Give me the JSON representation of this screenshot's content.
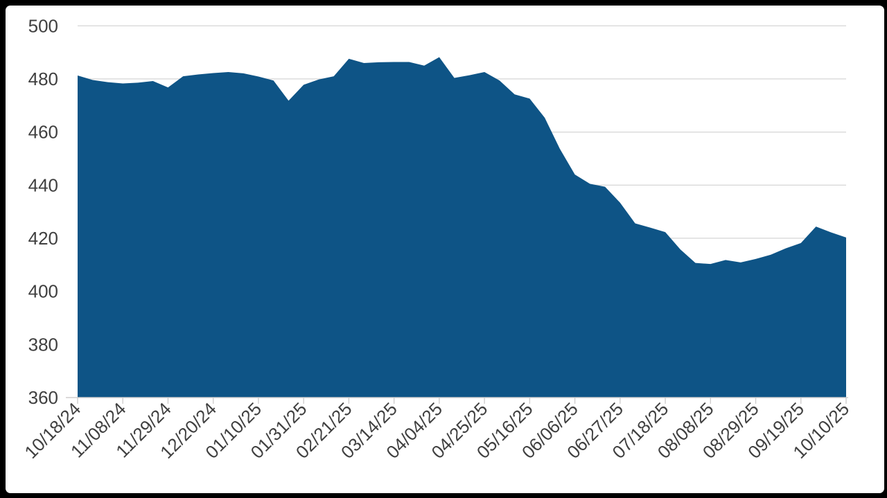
{
  "chart_data": {
    "type": "area",
    "title": "",
    "legend": "none",
    "grid": "horizontal",
    "x": [
      "10/18/24",
      "10/25/24",
      "11/01/24",
      "11/08/24",
      "11/15/24",
      "11/22/24",
      "11/29/24",
      "12/06/24",
      "12/13/24",
      "12/20/24",
      "12/27/24",
      "01/03/25",
      "01/10/25",
      "01/17/25",
      "01/24/25",
      "01/31/25",
      "02/07/25",
      "02/14/25",
      "02/21/25",
      "02/28/25",
      "03/07/25",
      "03/14/25",
      "03/21/25",
      "03/28/25",
      "04/04/25",
      "04/11/25",
      "04/18/25",
      "04/25/25",
      "05/02/25",
      "05/09/25",
      "05/16/25",
      "05/23/25",
      "05/30/25",
      "06/06/25",
      "06/13/25",
      "06/20/25",
      "06/27/25",
      "07/04/25",
      "07/11/25",
      "07/18/25",
      "07/25/25",
      "08/01/25",
      "08/08/25",
      "08/15/25",
      "08/22/25",
      "08/29/25",
      "09/05/25",
      "09/12/25",
      "09/19/25",
      "09/26/25",
      "10/03/25",
      "10/10/25"
    ],
    "values": [
      481.3,
      479.6,
      478.8,
      478.3,
      478.6,
      479.2,
      476.8,
      481.0,
      481.7,
      482.2,
      482.6,
      482.1,
      480.9,
      479.4,
      471.8,
      477.8,
      479.8,
      481.0,
      487.6,
      486.0,
      486.3,
      486.4,
      486.4,
      485.0,
      488.2,
      480.4,
      481.4,
      482.6,
      479.4,
      474.2,
      472.6,
      465.4,
      453.7,
      444.0,
      440.5,
      439.4,
      433.4,
      425.6,
      424.0,
      422.3,
      415.8,
      410.7,
      410.3,
      411.8,
      410.9,
      412.2,
      413.8,
      416.2,
      418.2,
      424.4,
      422.2,
      420.3
    ],
    "x_tick_labels": [
      "10/18/24",
      "11/08/24",
      "11/29/24",
      "12/20/24",
      "01/10/25",
      "01/31/25",
      "02/21/25",
      "03/14/25",
      "04/04/25",
      "04/25/25",
      "05/16/25",
      "06/06/25",
      "06/27/25",
      "07/18/25",
      "08/08/25",
      "08/29/25",
      "09/19/25",
      "10/10/25"
    ],
    "x_label_every": 3,
    "x_label_rotation_deg": -45,
    "yticks": [
      360,
      380,
      400,
      420,
      440,
      460,
      480,
      500
    ],
    "ylim": [
      360,
      500
    ],
    "xlabel": "",
    "ylabel": "",
    "colors": {
      "area_fill": "#0e5486",
      "gridline": "#d9d9d9",
      "axis_line": "#d0cece",
      "tick_mark": "#d0cece",
      "axis_label": "#404040",
      "plot_background": "#ffffff",
      "frame": "#000000"
    }
  }
}
